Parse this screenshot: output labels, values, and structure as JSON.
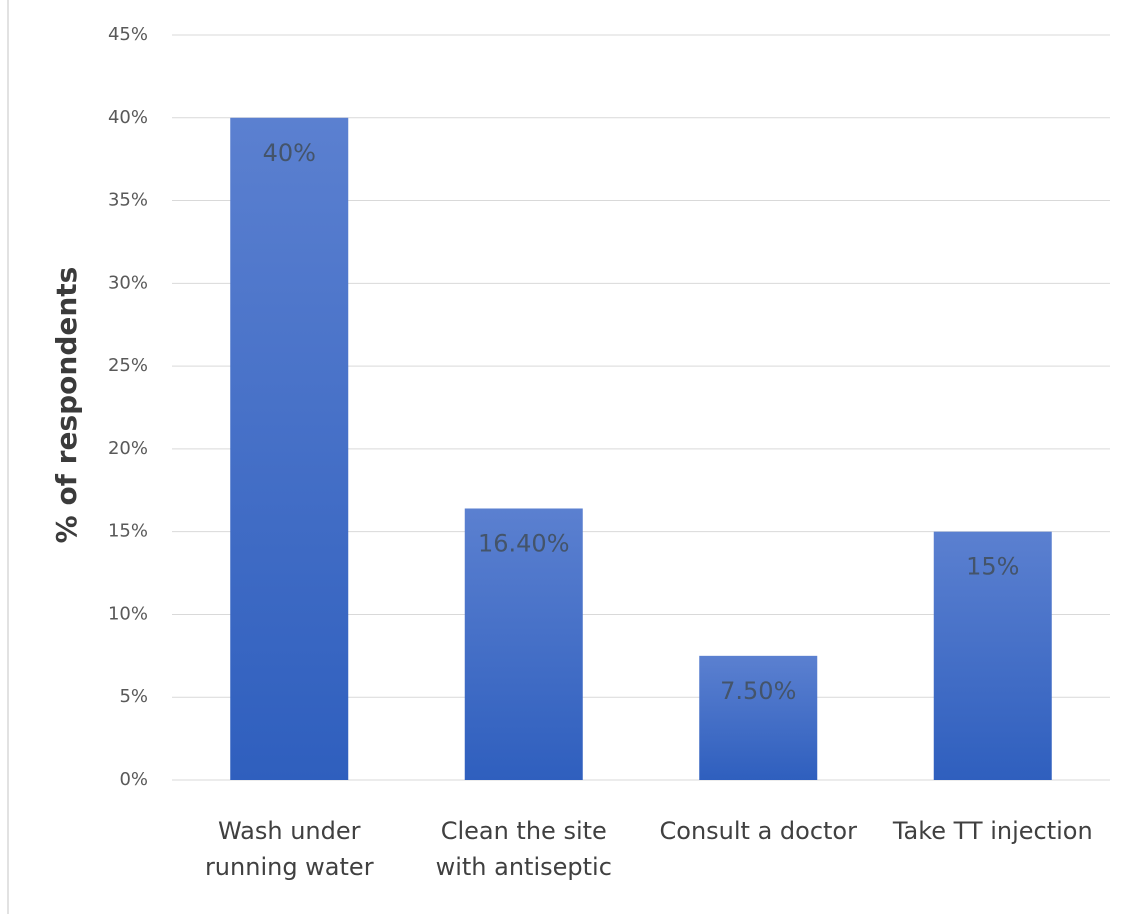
{
  "chart_data": {
    "type": "bar",
    "y_axis_label": "% of respondents",
    "categories": [
      [
        "Wash under",
        "running water"
      ],
      [
        "Clean the site",
        "with antiseptic"
      ],
      [
        "Consult a doctor"
      ],
      [
        "Take TT injection"
      ]
    ],
    "values": [
      40,
      16.4,
      7.5,
      15
    ],
    "value_labels": [
      "40%",
      "16.40%",
      "7.50%",
      "15%"
    ],
    "color": "#4472c4",
    "ylim": [
      0,
      45
    ],
    "yticks": [
      {
        "value": 0,
        "label": "0%"
      },
      {
        "value": 5,
        "label": "5%"
      },
      {
        "value": 10,
        "label": "10%"
      },
      {
        "value": 15,
        "label": "15%"
      },
      {
        "value": 20,
        "label": "20%"
      },
      {
        "value": 25,
        "label": "25%"
      },
      {
        "value": 30,
        "label": "30%"
      },
      {
        "value": 35,
        "label": "35%"
      },
      {
        "value": 40,
        "label": "40%"
      },
      {
        "value": 45,
        "label": "45%"
      }
    ],
    "grid": true
  }
}
